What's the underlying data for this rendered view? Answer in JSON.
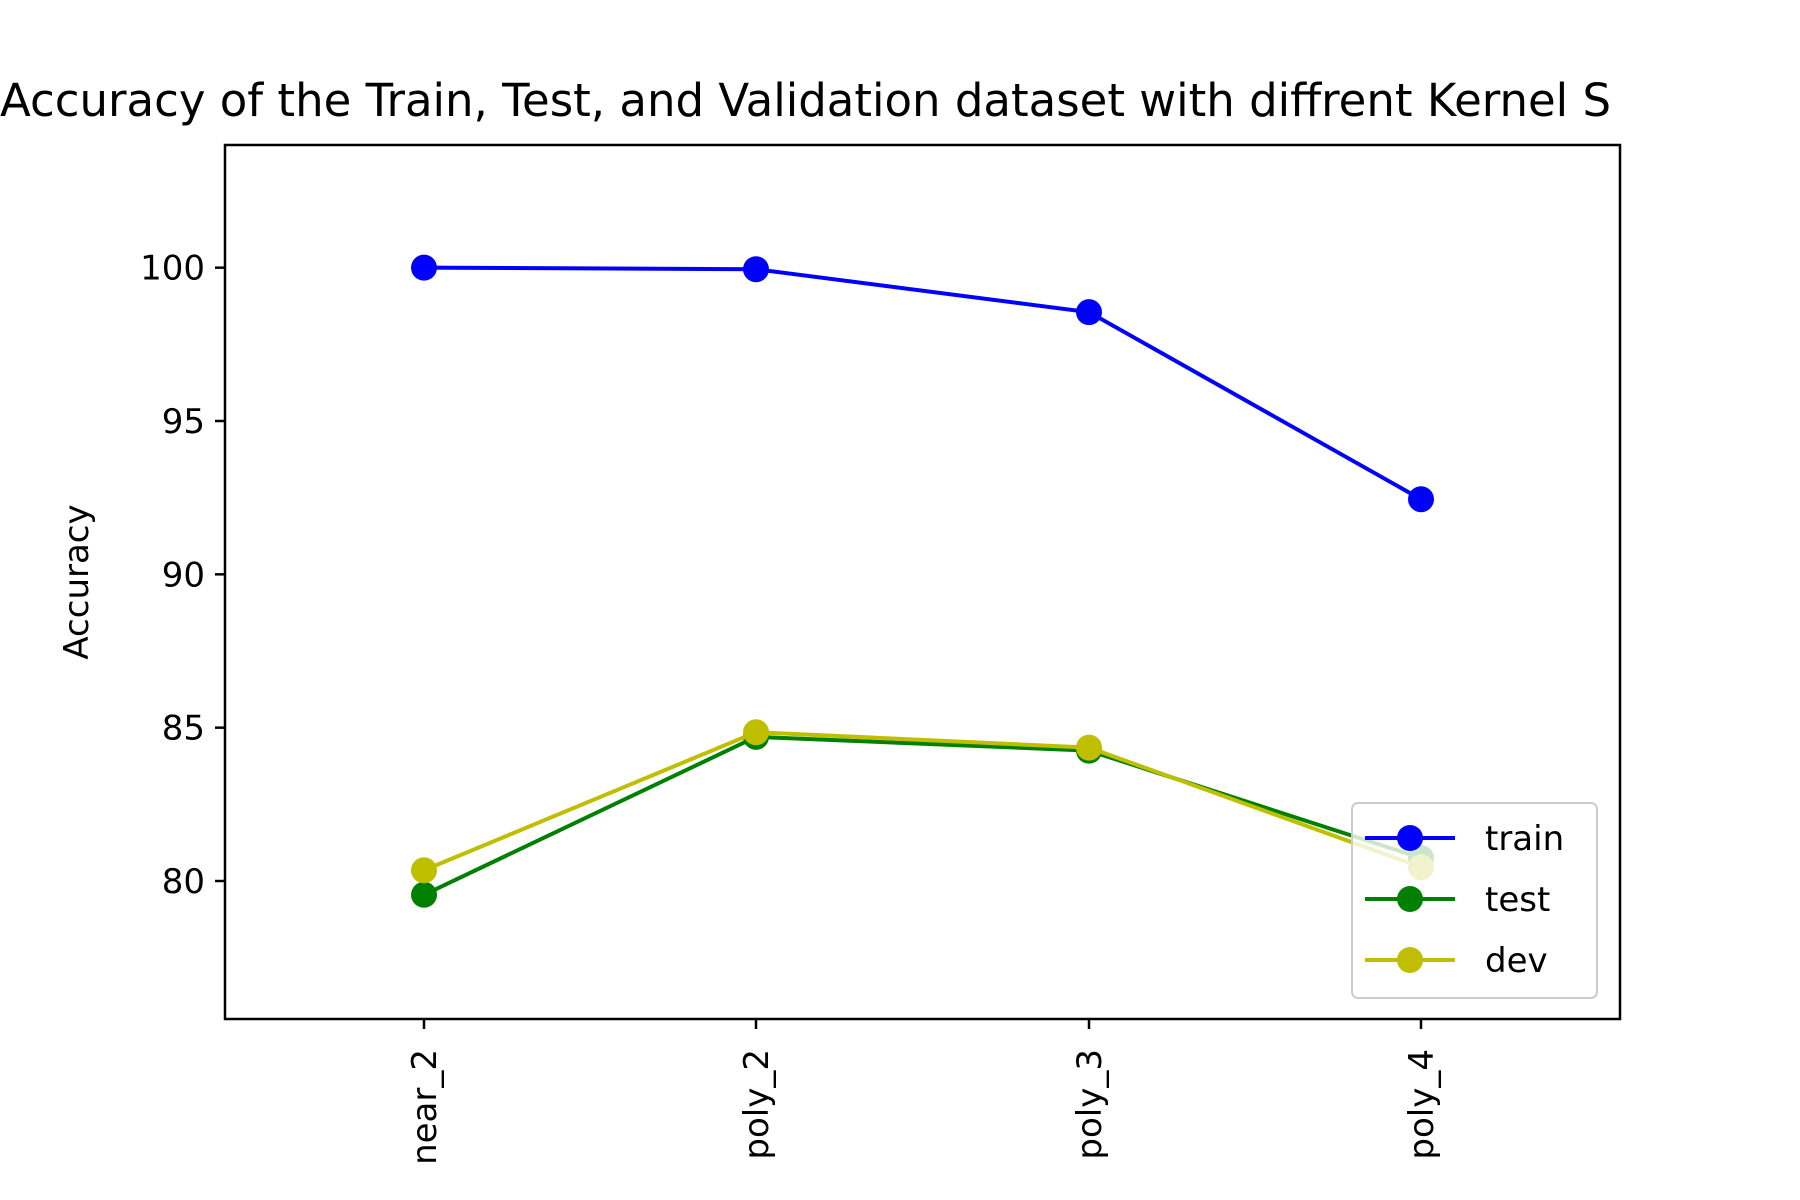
{
  "chart_data": {
    "type": "line",
    "title": "Accuracy of the Train, Test, and Validation dataset with diffrent Kernel S",
    "xlabel": "",
    "ylabel": "Accuracy",
    "categories": [
      "near_2",
      "poly_2",
      "poly_3",
      "poly_4"
    ],
    "ylim": [
      75.5,
      104
    ],
    "yticks": [
      80,
      85,
      90,
      95,
      100
    ],
    "grid": false,
    "legend_position": "lower-right",
    "series": [
      {
        "name": "train",
        "color": "#0000ff",
        "values": [
          100.0,
          99.95,
          98.55,
          92.45
        ]
      },
      {
        "name": "test",
        "color": "#008000",
        "values": [
          79.55,
          84.7,
          84.25,
          80.75
        ]
      },
      {
        "name": "dev",
        "color": "#bfbf00",
        "values": [
          80.35,
          84.85,
          84.35,
          80.45
        ]
      }
    ]
  }
}
